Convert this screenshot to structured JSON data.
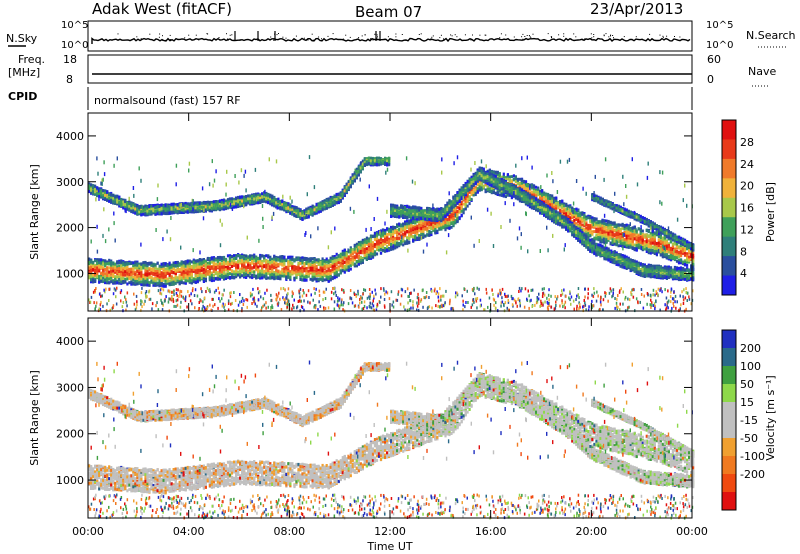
{
  "header": {
    "station": "Adak West (fitACF)",
    "beam": "Beam 07",
    "date": "23/Apr/2013"
  },
  "top_panels": {
    "nsky_label": "N.Sky",
    "nsky_ticks": [
      "10^5",
      "10^0"
    ],
    "nsearch_label": "N.Search",
    "nsearch_ticks": [
      "10^5",
      "10^0"
    ],
    "freq_label_1": "Freq.",
    "freq_label_2": "[MHz]",
    "freq_ticks": [
      "18",
      "8"
    ],
    "nave_label": "Nave",
    "nave_ticks": [
      "60",
      "0"
    ],
    "cpid_label": "CPID",
    "cpid_text": "normalsound (fast) 157 RF"
  },
  "colors": {
    "power_scale": [
      "#1f1fe6",
      "#2a4f9e",
      "#2f7f7a",
      "#3fa05a",
      "#a8c84a",
      "#f0b23a",
      "#f07a2a",
      "#e83a1a",
      "#e01010"
    ],
    "velocity_scale": [
      "#e01010",
      "#f04a10",
      "#f07a20",
      "#f0a030",
      "#c0c0c0",
      "#c0c0c0",
      "#8ed84a",
      "#3fa040",
      "#2a6a8a",
      "#2030c0"
    ]
  },
  "chart_data": [
    {
      "type": "heatmap",
      "name": "power",
      "ylabel": "Slant Range [km]",
      "x_ticks": [
        "00:00",
        "04:00",
        "08:00",
        "12:00",
        "16:00",
        "20:00",
        "00:00"
      ],
      "y_ticks": [
        1000,
        2000,
        3000,
        4000
      ],
      "xlim_hours": [
        0,
        24
      ],
      "ylim_km": [
        180,
        4500
      ],
      "colorbar_label": "Power [dB]",
      "colorbar_ticks": [
        4,
        8,
        12,
        16,
        20,
        24,
        28
      ],
      "colorbar_range": [
        0,
        32
      ]
    },
    {
      "type": "heatmap",
      "name": "velocity",
      "ylabel": "Slant Range [km]",
      "xlabel": "Time UT",
      "x_ticks": [
        "00:00",
        "04:00",
        "08:00",
        "12:00",
        "16:00",
        "20:00",
        "00:00"
      ],
      "y_ticks": [
        1000,
        2000,
        3000,
        4000
      ],
      "xlim_hours": [
        0,
        24
      ],
      "ylim_km": [
        180,
        4500
      ],
      "colorbar_label": "Velocity [m s⁻¹]",
      "colorbar_ticks": [
        200,
        100,
        50,
        15,
        -15,
        -50,
        -100,
        -200
      ]
    }
  ]
}
